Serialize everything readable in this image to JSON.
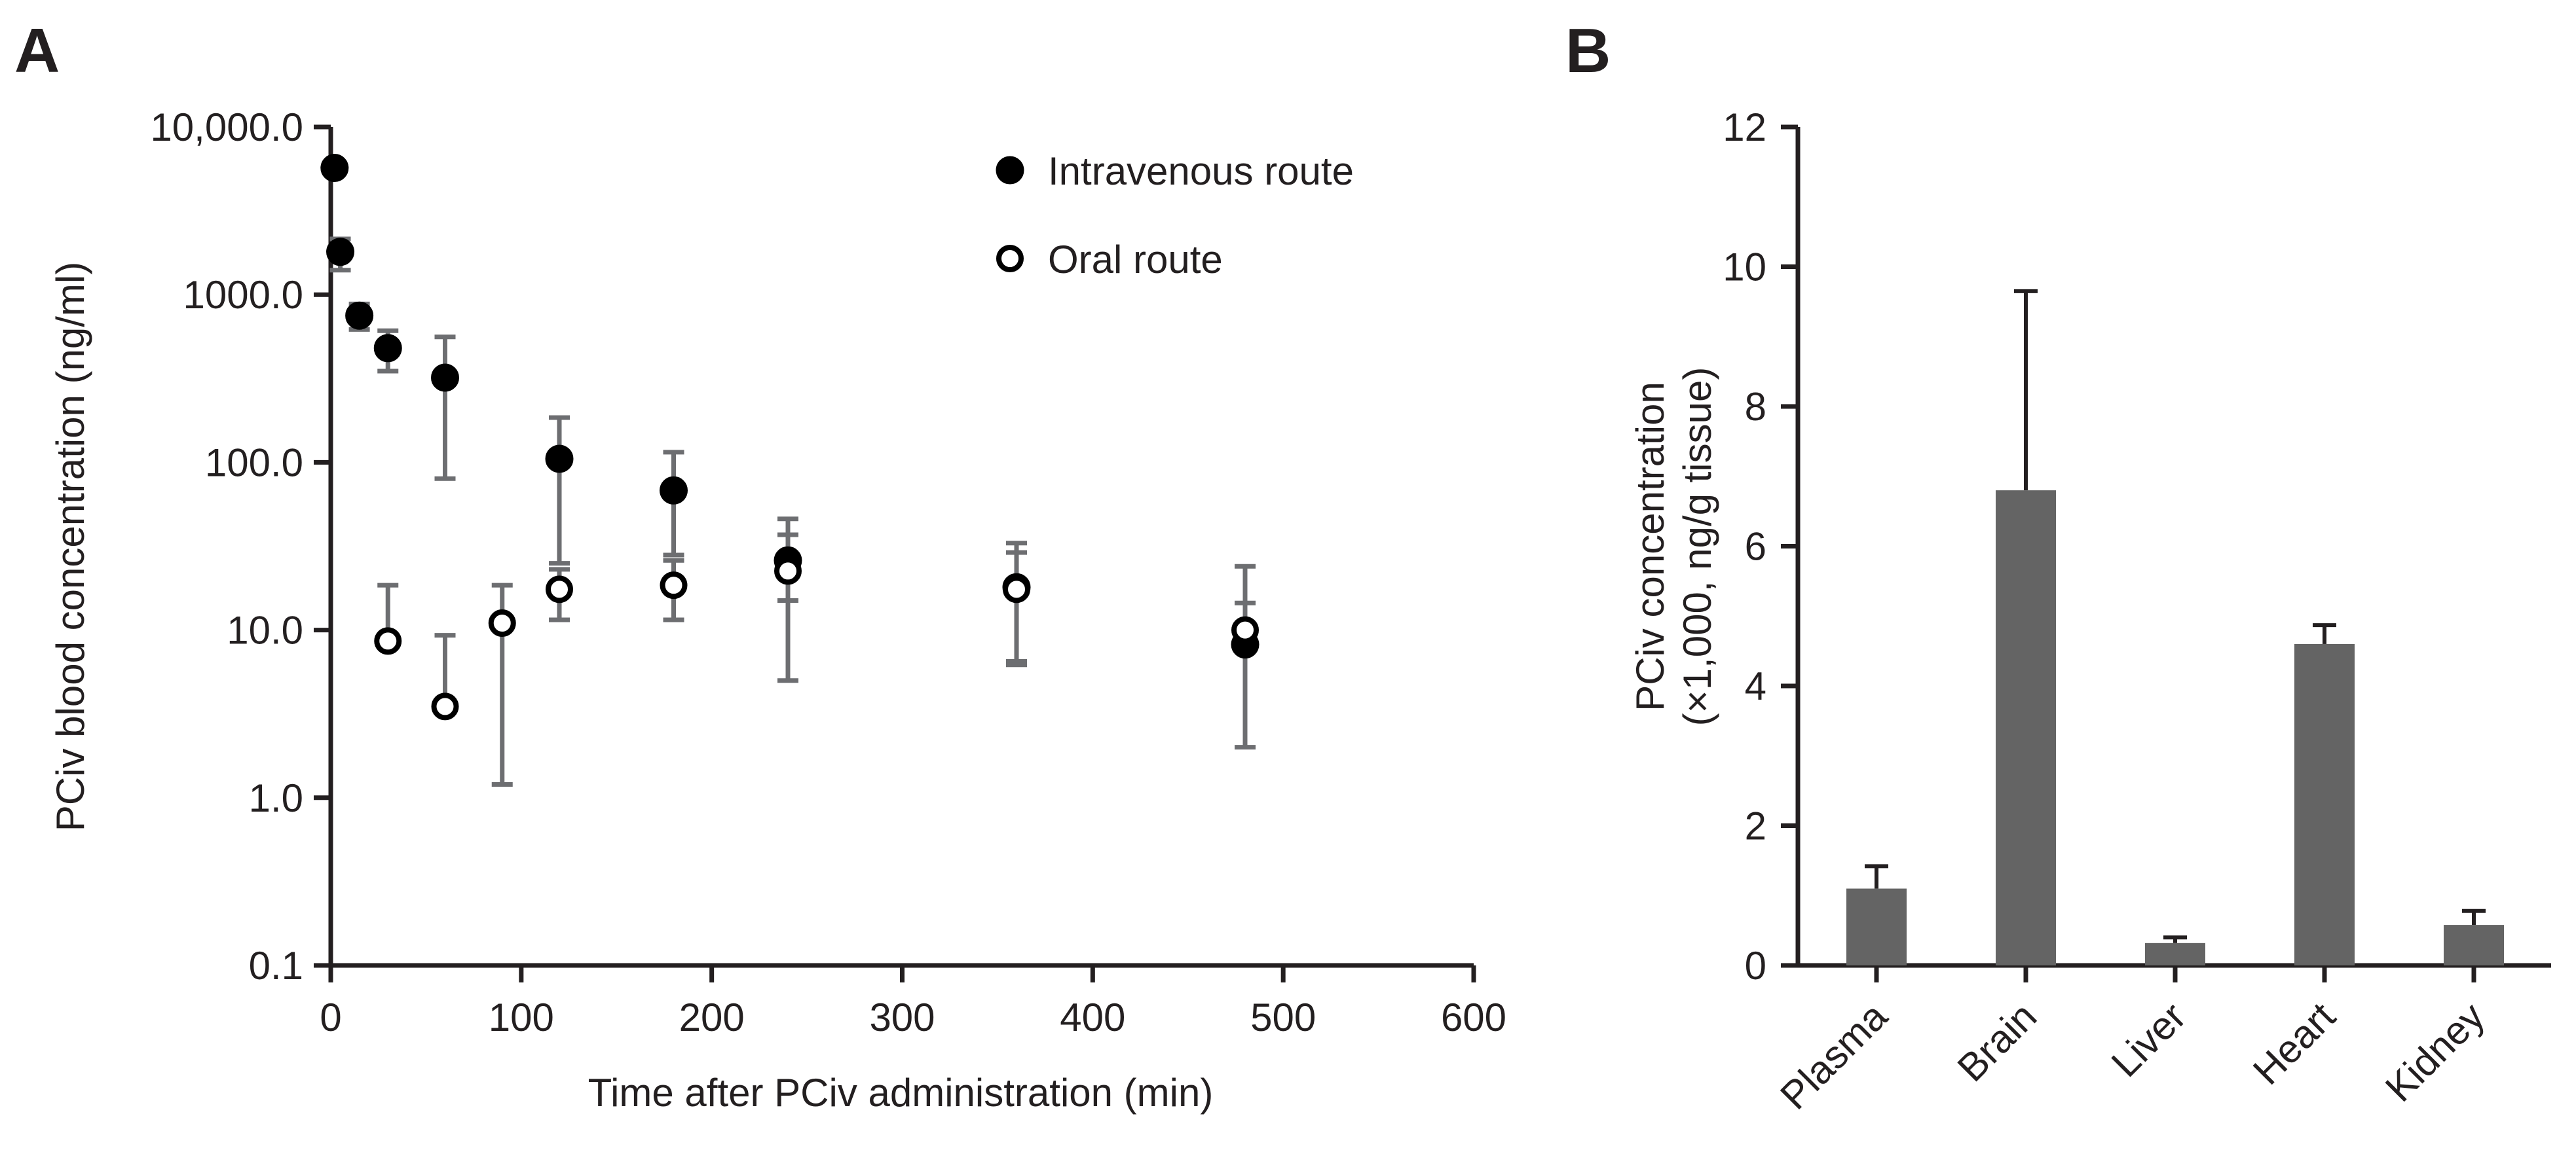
{
  "chart_data": [
    {
      "panel": "A",
      "type": "scatter",
      "xlabel": "Time after PCiv administration (min)",
      "ylabel": "PCiv blood concentration (ng/ml)",
      "xlim": [
        0,
        600
      ],
      "ylim": [
        0.1,
        10000
      ],
      "yscale": "log",
      "xticks": [
        0,
        100,
        200,
        300,
        400,
        500,
        600
      ],
      "xtick_labels": [
        "0",
        "100",
        "200",
        "300",
        "400",
        "500",
        "600"
      ],
      "yticks": [
        0.1,
        1,
        10,
        100,
        1000,
        10000
      ],
      "ytick_labels": [
        "0.1",
        "1.0",
        "10.0",
        "100.0",
        "1000.0",
        "10,000.0"
      ],
      "legend_position": "top-right",
      "series": [
        {
          "name": "Intravenous route",
          "marker": "filled-circle",
          "points": [
            {
              "x": 2,
              "y": 5700,
              "lo": 5700,
              "hi": 5700
            },
            {
              "x": 5,
              "y": 1800,
              "lo": 1400,
              "hi": 2150
            },
            {
              "x": 15,
              "y": 750,
              "lo": 620,
              "hi": 880
            },
            {
              "x": 30,
              "y": 480,
              "lo": 350,
              "hi": 610
            },
            {
              "x": 60,
              "y": 320,
              "lo": 80,
              "hi": 560
            },
            {
              "x": 120,
              "y": 105,
              "lo": 25,
              "hi": 185
            },
            {
              "x": 180,
              "y": 68,
              "lo": 28,
              "hi": 115
            },
            {
              "x": 240,
              "y": 26,
              "lo": 15,
              "hi": 37
            },
            {
              "x": 360,
              "y": 18,
              "lo": 6.5,
              "hi": 29
            },
            {
              "x": 480,
              "y": 8.2,
              "lo": 2.0,
              "hi": 14.5
            }
          ]
        },
        {
          "name": "Oral route",
          "marker": "open-circle",
          "points": [
            {
              "x": 30,
              "y": 8.6,
              "lo": 8.6,
              "hi": 18.5
            },
            {
              "x": 60,
              "y": 3.5,
              "lo": 3.5,
              "hi": 9.3
            },
            {
              "x": 90,
              "y": 11,
              "lo": 1.2,
              "hi": 18.5
            },
            {
              "x": 120,
              "y": 17.5,
              "lo": 11.5,
              "hi": 23
            },
            {
              "x": 180,
              "y": 18.5,
              "lo": 11.5,
              "hi": 26
            },
            {
              "x": 240,
              "y": 22.5,
              "lo": 5.0,
              "hi": 46
            },
            {
              "x": 360,
              "y": 17.5,
              "lo": 6.2,
              "hi": 33
            },
            {
              "x": 480,
              "y": 10,
              "lo": 10,
              "hi": 24
            }
          ]
        }
      ]
    },
    {
      "panel": "B",
      "type": "bar",
      "ylabel_line1": "PCiv concentration",
      "ylabel_line2": "(×1,000, ng/g tissue)",
      "ylim": [
        0,
        12
      ],
      "yticks": [
        0,
        2,
        4,
        6,
        8,
        10,
        12
      ],
      "ytick_labels": [
        "0",
        "2",
        "4",
        "6",
        "8",
        "10",
        "12"
      ],
      "categories": [
        "Plasma",
        "Brain",
        "Liver",
        "Heart",
        "Kidney"
      ],
      "values": [
        1.1,
        6.8,
        0.32,
        4.6,
        0.58
      ],
      "errors": [
        0.32,
        2.85,
        0.08,
        0.27,
        0.2
      ],
      "bar_color": "#646464"
    }
  ]
}
